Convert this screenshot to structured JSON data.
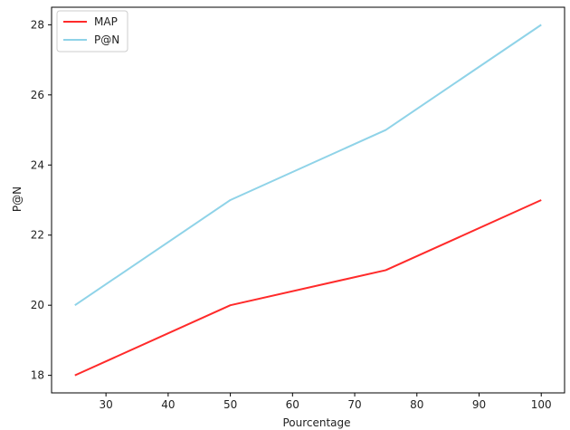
{
  "chart_data": {
    "type": "line",
    "title": "",
    "xlabel": "Pourcentage",
    "ylabel": "P@N",
    "x": [
      25,
      50,
      75,
      100
    ],
    "series": [
      {
        "name": "MAP",
        "color": "#ff2a2a",
        "values": [
          18,
          20,
          21,
          23
        ]
      },
      {
        "name": "P@N",
        "color": "#8fd3e8",
        "values": [
          20,
          23,
          25,
          28
        ]
      }
    ],
    "xlim": [
      21.25,
      103.75
    ],
    "ylim": [
      17.5,
      28.5
    ],
    "xticks": [
      30,
      40,
      50,
      60,
      70,
      80,
      90,
      100
    ],
    "xtick_labels": [
      "30",
      "40",
      "50",
      "60",
      "70",
      "80",
      "90",
      "100"
    ],
    "yticks": [
      18,
      20,
      22,
      24,
      26,
      28
    ],
    "ytick_labels": [
      "18",
      "20",
      "22",
      "24",
      "26",
      "28"
    ],
    "grid": false,
    "legend_position": "top-left"
  }
}
